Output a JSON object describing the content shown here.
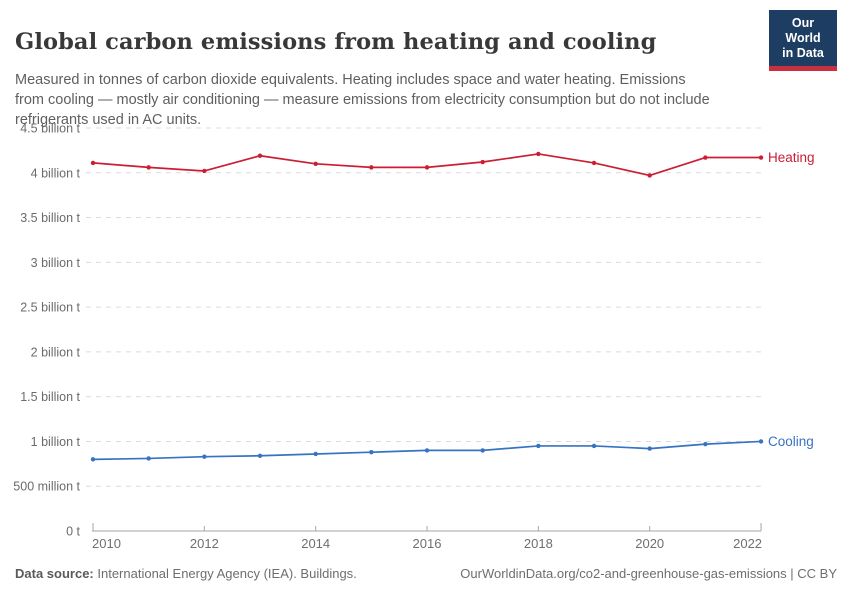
{
  "header": {
    "title": "Global carbon emissions from heating and cooling",
    "logo": {
      "line1": "Our World",
      "line2": "in Data",
      "bg_color": "#1d3d63",
      "bar_color": "#c7303c"
    }
  },
  "subtitle": "Measured in tonnes of carbon dioxide equivalents. Heating includes space and water heating. Emissions from cooling — mostly air conditioning — measure emissions from electricity consumption but do not include refrigerants used in AC units.",
  "chart_data": {
    "type": "line",
    "x": [
      2010,
      2011,
      2012,
      2013,
      2014,
      2015,
      2016,
      2017,
      2018,
      2019,
      2020,
      2021,
      2022
    ],
    "series": [
      {
        "name": "Heating",
        "color": "#cb1e34",
        "values": [
          4.11,
          4.06,
          4.02,
          4.19,
          4.1,
          4.06,
          4.06,
          4.12,
          4.21,
          4.11,
          3.97,
          4.17,
          4.17
        ]
      },
      {
        "name": "Cooling",
        "color": "#3773c3",
        "values": [
          0.8,
          0.81,
          0.83,
          0.84,
          0.86,
          0.88,
          0.9,
          0.9,
          0.95,
          0.95,
          0.92,
          0.97,
          1.0
        ]
      }
    ],
    "unit": "tonnes of CO2 equivalents",
    "y_ticks": [
      {
        "value": 0,
        "label": "0 t"
      },
      {
        "value": 0.5,
        "label": "500 million t"
      },
      {
        "value": 1,
        "label": "1 billion t"
      },
      {
        "value": 1.5,
        "label": "1.5 billion t"
      },
      {
        "value": 2,
        "label": "2 billion t"
      },
      {
        "value": 2.5,
        "label": "2.5 billion t"
      },
      {
        "value": 3,
        "label": "3 billion t"
      },
      {
        "value": 3.5,
        "label": "3.5 billion t"
      },
      {
        "value": 4,
        "label": "4 billion t"
      },
      {
        "value": 4.5,
        "label": "4.5 billion t"
      }
    ],
    "x_ticks": [
      2010,
      2012,
      2014,
      2016,
      2018,
      2020,
      2022
    ],
    "ylim": [
      0,
      4.5
    ],
    "xlim": [
      2010,
      2022
    ],
    "grid": "dashed-horizontal",
    "legend_position": "line-end-labels",
    "title": "Global carbon emissions from heating and cooling"
  },
  "footer": {
    "source_label": "Data source:",
    "source_text": " International Energy Agency (IEA). Buildings.",
    "right_text": "OurWorldinData.org/co2-and-greenhouse-gas-emissions | CC BY"
  }
}
